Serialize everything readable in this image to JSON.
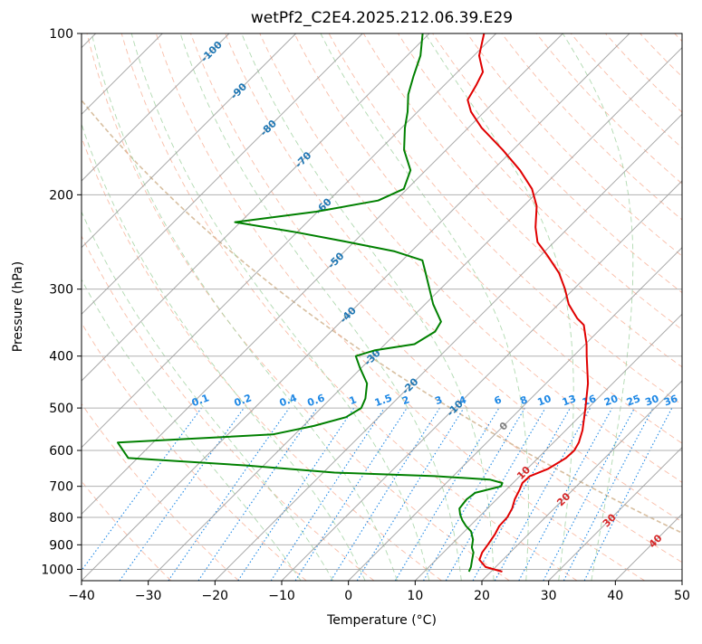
{
  "chart_data": {
    "type": "skew-t",
    "title": "wetPf2_C2E4.2025.212.06.39.E29",
    "xlabel": "Temperature (°C)",
    "ylabel": "Pressure (hPa)",
    "xlim": [
      -40,
      50
    ],
    "ylim": [
      1050,
      100
    ],
    "y_scale": "log",
    "skew": 45,
    "grid": true,
    "x_ticks": [
      "−40",
      "−30",
      "−20",
      "−10",
      "0",
      "10",
      "20",
      "30",
      "40",
      "50"
    ],
    "y_ticks": [
      "100",
      "200",
      "300",
      "400",
      "500",
      "600",
      "700",
      "800",
      "900",
      "1000"
    ],
    "series": [
      {
        "color": "#e00000",
        "values": [
          [
            1010,
            21.7
          ],
          [
            990,
            18.5
          ],
          [
            960,
            16.5
          ],
          [
            930,
            15.8
          ],
          [
            900,
            15.5
          ],
          [
            860,
            15.0
          ],
          [
            830,
            14.4
          ],
          [
            800,
            14.3
          ],
          [
            770,
            13.7
          ],
          [
            740,
            12.7
          ],
          [
            710,
            12.0
          ],
          [
            690,
            11.4
          ],
          [
            670,
            11.5
          ],
          [
            650,
            13.1
          ],
          [
            620,
            14.2
          ],
          [
            600,
            14.3
          ],
          [
            580,
            13.8
          ],
          [
            550,
            12.5
          ],
          [
            500,
            9.6
          ],
          [
            450,
            6.3
          ],
          [
            400,
            2.0
          ],
          [
            380,
            0.2
          ],
          [
            350,
            -3.1
          ],
          [
            340,
            -5.1
          ],
          [
            320,
            -8.5
          ],
          [
            300,
            -11.3
          ],
          [
            280,
            -14.6
          ],
          [
            260,
            -18.9
          ],
          [
            245,
            -22.5
          ],
          [
            230,
            -25.0
          ],
          [
            210,
            -28.0
          ],
          [
            195,
            -31.3
          ],
          [
            180,
            -35.9
          ],
          [
            165,
            -41.5
          ],
          [
            150,
            -48.0
          ],
          [
            140,
            -52.0
          ],
          [
            133,
            -54.3
          ],
          [
            125,
            -55.2
          ],
          [
            118,
            -56.2
          ],
          [
            110,
            -59.2
          ],
          [
            103,
            -61.0
          ],
          [
            100,
            -61.8
          ]
        ]
      },
      {
        "color": "#008000",
        "values": [
          [
            1010,
            16.7
          ],
          [
            990,
            16.3
          ],
          [
            960,
            15.4
          ],
          [
            930,
            14.5
          ],
          [
            910,
            13.5
          ],
          [
            880,
            12.5
          ],
          [
            850,
            11.0
          ],
          [
            830,
            9.4
          ],
          [
            810,
            8.0
          ],
          [
            790,
            6.8
          ],
          [
            770,
            5.8
          ],
          [
            740,
            5.5
          ],
          [
            720,
            5.8
          ],
          [
            700,
            8.7
          ],
          [
            690,
            8.4
          ],
          [
            680,
            6.0
          ],
          [
            670,
            -2.8
          ],
          [
            660,
            -18.3
          ],
          [
            640,
            -32.6
          ],
          [
            620,
            -51.4
          ],
          [
            580,
            -55.3
          ],
          [
            560,
            -33.3
          ],
          [
            540,
            -28.4
          ],
          [
            520,
            -24.9
          ],
          [
            500,
            -24.0
          ],
          [
            480,
            -24.8
          ],
          [
            450,
            -26.8
          ],
          [
            420,
            -30.3
          ],
          [
            400,
            -32.6
          ],
          [
            390,
            -30.6
          ],
          [
            380,
            -25.6
          ],
          [
            360,
            -24.4
          ],
          [
            345,
            -25.0
          ],
          [
            320,
            -28.8
          ],
          [
            300,
            -31.6
          ],
          [
            280,
            -34.6
          ],
          [
            265,
            -37.0
          ],
          [
            255,
            -42.5
          ],
          [
            245,
            -50.9
          ],
          [
            235,
            -60.1
          ],
          [
            225,
            -70.8
          ],
          [
            215,
            -60.2
          ],
          [
            205,
            -52.6
          ],
          [
            195,
            -50.5
          ],
          [
            180,
            -52.3
          ],
          [
            165,
            -56.3
          ],
          [
            150,
            -59.5
          ],
          [
            140,
            -61.5
          ],
          [
            130,
            -64.0
          ],
          [
            120,
            -66.0
          ],
          [
            110,
            -68.0
          ],
          [
            100,
            -71.0
          ]
        ]
      }
    ],
    "dry_adiabats": [
      -30,
      -20,
      -10,
      0,
      10,
      20,
      30,
      40,
      50,
      60,
      70,
      80,
      90,
      100,
      110,
      120,
      130,
      140,
      150,
      160,
      170,
      180,
      190,
      200
    ],
    "moist_adiabats": [
      -10,
      -5,
      0,
      5,
      10,
      15,
      20,
      25,
      30,
      35
    ],
    "mixing_ratio_lines": [
      "0.1",
      "0.2",
      "0.4",
      "0.6",
      "1",
      "1.5",
      "2",
      "3",
      "4",
      "6",
      "8",
      "10",
      "13",
      "16",
      "20",
      "25",
      "30",
      "36"
    ],
    "isotherm_labels_blue": [
      "-100",
      "-90",
      "-80",
      "-70",
      "-60",
      "-50",
      "-40",
      "-30",
      "-20",
      "-10"
    ],
    "isotherm_labels_other": [
      "0",
      "10",
      "20",
      "30",
      "40"
    ],
    "colors": {
      "temperature": "#e00000",
      "dewpoint": "#008000",
      "isotherms": "#9a9a9a",
      "grid": "#b0b0b0",
      "dry_adiabats": "#f7a78b",
      "moist_adiabats": "#9ccf9c",
      "mixing_ratio": "#1e88e5",
      "isotherm_label_cold": "#1f77b4",
      "isotherm_label_zero": "#808080",
      "isotherm_label_warm": "#d62728",
      "reference_curve": "#d8bfa0"
    }
  }
}
